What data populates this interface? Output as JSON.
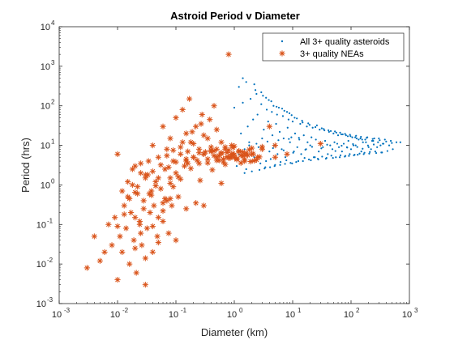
{
  "chart_data": {
    "type": "scatter",
    "title": "Astroid Period v Diameter",
    "xlabel": "Diameter (km)",
    "ylabel": "Period (hrs)",
    "xscale": "log",
    "yscale": "log",
    "xlim": [
      0.001,
      1000
    ],
    "ylim": [
      0.001,
      10000
    ],
    "x_ticks": [
      {
        "value": 0.001,
        "base": "10",
        "exp": "-3"
      },
      {
        "value": 0.01,
        "base": "10",
        "exp": "-2"
      },
      {
        "value": 0.1,
        "base": "10",
        "exp": "-1"
      },
      {
        "value": 1,
        "base": "10",
        "exp": "0"
      },
      {
        "value": 10,
        "base": "10",
        "exp": "1"
      },
      {
        "value": 100,
        "base": "10",
        "exp": "2"
      },
      {
        "value": 1000,
        "base": "10",
        "exp": "3"
      }
    ],
    "y_ticks": [
      {
        "value": 0.001,
        "base": "10",
        "exp": "-3"
      },
      {
        "value": 0.01,
        "base": "10",
        "exp": "-2"
      },
      {
        "value": 0.1,
        "base": "10",
        "exp": "-1"
      },
      {
        "value": 1,
        "base": "10",
        "exp": "0"
      },
      {
        "value": 10,
        "base": "10",
        "exp": "1"
      },
      {
        "value": 100,
        "base": "10",
        "exp": "2"
      },
      {
        "value": 1000,
        "base": "10",
        "exp": "3"
      },
      {
        "value": 10000,
        "base": "10",
        "exp": "4"
      }
    ],
    "grid": false,
    "legend_position": "top-right",
    "series": [
      {
        "name": "All 3+ quality asteroids",
        "marker": "dot",
        "color": "#0072BD",
        "x": [
          1.2,
          1.5,
          1.8,
          2.2,
          2.6,
          3.0,
          3.5,
          4.0,
          4.8,
          5.5,
          6.5,
          7.5,
          9.0,
          10.5,
          12.0,
          14.0,
          17.0,
          20.0,
          24.0,
          28.0,
          33.0,
          40.0,
          48.0,
          58.0,
          70.0,
          85.0,
          100.0,
          120.0,
          150.0,
          180.0,
          220.0,
          280.0,
          350.0,
          450.0,
          600.0,
          1.3,
          1.7,
          2.1,
          2.5,
          3.2,
          3.8,
          4.5,
          5.2,
          6.0,
          7.0,
          8.2,
          9.5,
          11.0,
          13.0,
          15.5,
          18.0,
          21.0,
          25.0,
          30.0,
          36.0,
          44.0,
          52.0,
          62.0,
          75.0,
          90.0,
          110.0,
          135.0,
          160.0,
          200.0,
          250.0,
          320.0,
          1.1,
          1.6,
          2.0,
          2.8,
          3.4,
          4.2,
          5.0,
          6.2,
          7.8,
          9.8,
          12.5,
          16.0,
          19.0,
          23.0,
          27.0,
          32.0,
          38.0,
          46.0,
          55.0,
          66.0,
          80.0,
          95.0,
          115.0,
          140.0,
          170.0,
          210.0,
          260.0,
          330.0,
          420.0,
          520.0,
          1.0,
          1.4,
          1.9,
          2.4,
          2.9,
          3.6,
          4.4,
          5.4,
          6.8,
          8.5,
          10.0,
          13.5,
          17.5,
          22.0,
          29.0,
          35.0,
          42.0,
          50.0,
          60.0,
          72.0,
          88.0,
          105.0,
          125.0,
          155.0,
          190.0,
          240.0,
          300.0,
          380.0,
          480.0,
          700.0,
          1.2,
          1.6,
          2.3,
          3.1,
          3.9,
          4.7,
          5.8,
          7.2,
          8.8,
          10.8,
          14.5,
          18.5,
          26.0,
          34.0,
          45.0,
          56.0,
          68.0,
          82.0,
          98.0,
          118.0,
          145.0,
          175.0,
          230.0,
          290.0,
          360.0,
          1.5,
          2.0,
          2.7,
          3.3,
          4.1,
          4.9,
          6.1,
          7.4,
          9.2,
          11.5,
          15.0,
          20.5,
          27.5,
          37.0,
          49.0,
          64.0,
          78.0,
          92.0,
          112.0,
          130.0,
          165.0,
          205.0,
          270.0,
          340.0,
          1.8,
          2.4,
          3.0,
          3.7,
          4.6,
          5.7,
          7.0,
          8.6,
          10.2,
          12.8,
          16.5,
          21.5,
          31.0,
          39.0,
          54.0,
          69.0,
          86.0,
          108.0,
          128.0,
          158.0,
          195.0,
          245.0,
          1.4,
          2.2,
          2.9,
          3.5,
          4.3,
          5.3,
          6.6,
          8.0,
          9.6,
          11.8,
          14.8,
          19.5,
          24.5,
          31.5,
          41.0,
          53.0,
          65.0,
          79.0,
          96.0,
          122.0,
          148.0,
          185.0,
          235.0,
          310.0,
          400.0,
          500.0
        ],
        "y": [
          6.0,
          8.0,
          12.0,
          5.0,
          9.0,
          15.0,
          4.0,
          7.0,
          10.0,
          6.0,
          8.0,
          5.0,
          12.0,
          7.0,
          9.0,
          6.0,
          8.0,
          10.0,
          5.0,
          7.0,
          9.0,
          6.0,
          8.0,
          11.0,
          7.0,
          9.0,
          8.0,
          10.0,
          7.0,
          12.0,
          8.0,
          9.0,
          11.0,
          10.0,
          12.0,
          20.0,
          30.0,
          45.0,
          60.0,
          25.0,
          40.0,
          18.0,
          35.0,
          22.0,
          15.0,
          28.0,
          16.0,
          20.0,
          14.0,
          18.0,
          12.0,
          16.0,
          14.0,
          11.0,
          13.0,
          10.0,
          12.0,
          9.0,
          11.0,
          13.0,
          10.0,
          14.0,
          12.0,
          9.0,
          15.0,
          10.0,
          3.0,
          2.5,
          4.0,
          3.5,
          2.8,
          4.5,
          3.2,
          3.8,
          4.2,
          3.5,
          4.0,
          4.8,
          4.4,
          5.0,
          4.6,
          5.2,
          4.8,
          5.5,
          5.0,
          5.6,
          5.4,
          6.0,
          5.8,
          6.2,
          6.5,
          6.8,
          7.0,
          6.6,
          7.2,
          8.0,
          90.0,
          120.0,
          150.0,
          200.0,
          110.0,
          80.0,
          70.0,
          60.0,
          55.0,
          45.0,
          40.0,
          35.0,
          30.0,
          28.0,
          25.0,
          24.0,
          22.0,
          20.0,
          18.0,
          19.0,
          17.0,
          16.0,
          15.0,
          14.0,
          16.0,
          13.0,
          15.0,
          14.0,
          13.0,
          12.0,
          300.0,
          400.0,
          250.0,
          180.0,
          140.0,
          100.0,
          90.0,
          75.0,
          65.0,
          50.0,
          42.0,
          36.0,
          32.0,
          26.0,
          23.0,
          21.0,
          19.0,
          18.0,
          17.0,
          16.0,
          15.0,
          14.0,
          13.0,
          12.0,
          11.0,
          2.0,
          2.2,
          2.4,
          2.6,
          2.8,
          3.0,
          3.2,
          3.4,
          3.6,
          3.8,
          4.0,
          4.2,
          4.4,
          4.6,
          4.8,
          5.0,
          5.2,
          5.4,
          5.6,
          5.8,
          6.0,
          6.2,
          6.4,
          6.6,
          10.0,
          11.0,
          9.5,
          12.5,
          8.5,
          13.5,
          7.5,
          14.5,
          6.5,
          15.5,
          7.8,
          9.2,
          8.4,
          10.4,
          7.2,
          9.8,
          8.8,
          10.8,
          9.1,
          8.2,
          9.9,
          10.5,
          500.0,
          350.0,
          220.0,
          160.0,
          130.0,
          95.0,
          85.0,
          70.0,
          58.0,
          48.0,
          38.0,
          33.0,
          29.0,
          27.0,
          24.0,
          22.5,
          21.0,
          19.5,
          18.5,
          17.5,
          16.5,
          15.5,
          14.5,
          13.5,
          12.5,
          11.5
        ]
      },
      {
        "name": "3+ quality NEAs",
        "marker": "asterisk",
        "color": "#D95319",
        "x": [
          0.003,
          0.004,
          0.005,
          0.006,
          0.007,
          0.008,
          0.009,
          0.01,
          0.01,
          0.011,
          0.012,
          0.013,
          0.014,
          0.015,
          0.016,
          0.017,
          0.018,
          0.019,
          0.02,
          0.02,
          0.021,
          0.022,
          0.024,
          0.025,
          0.026,
          0.028,
          0.03,
          0.03,
          0.032,
          0.034,
          0.036,
          0.038,
          0.04,
          0.04,
          0.042,
          0.045,
          0.048,
          0.05,
          0.05,
          0.055,
          0.06,
          0.06,
          0.065,
          0.07,
          0.07,
          0.075,
          0.08,
          0.08,
          0.085,
          0.09,
          0.09,
          0.1,
          0.1,
          0.11,
          0.12,
          0.13,
          0.14,
          0.15,
          0.16,
          0.17,
          0.18,
          0.2,
          0.22,
          0.25,
          0.28,
          0.3,
          0.35,
          0.4,
          0.45,
          0.5,
          0.6,
          0.7,
          0.8,
          0.9,
          1.0,
          1.2,
          1.5,
          2.0,
          2.5,
          3.0,
          4.0,
          5.0,
          0.012,
          0.015,
          0.018,
          0.022,
          0.025,
          0.03,
          0.035,
          0.04,
          0.05,
          0.06,
          0.07,
          0.08,
          0.1,
          0.12,
          0.15,
          0.2,
          0.25,
          0.3,
          0.4,
          0.5,
          0.6,
          0.8,
          1.0,
          1.5,
          2.0,
          0.01,
          0.013,
          0.016,
          0.02,
          0.024,
          0.028,
          0.033,
          0.038,
          0.045,
          0.055,
          0.065,
          0.075,
          0.09,
          0.11,
          0.13,
          0.16,
          0.19,
          0.23,
          0.27,
          0.32,
          0.38,
          0.45,
          0.55,
          0.65,
          0.75,
          0.85,
          0.95,
          1.1,
          1.3,
          1.6,
          0.02,
          0.025,
          0.03,
          0.04,
          0.05,
          0.06,
          0.08,
          0.1,
          0.12,
          0.15,
          0.18,
          0.22,
          0.26,
          0.3,
          0.35,
          0.42,
          0.5,
          0.6,
          0.7,
          0.9,
          1.1,
          1.4,
          1.8,
          2.2,
          3.0,
          5.0,
          8.0,
          30.0,
          0.15,
          0.2,
          0.25,
          0.3,
          0.35,
          0.4,
          0.45,
          0.5,
          0.55,
          0.6,
          0.65,
          0.7,
          0.75,
          0.8,
          0.85,
          0.9,
          0.95,
          1.0,
          1.1,
          1.2,
          1.3,
          1.4,
          1.5,
          1.7,
          1.9,
          2.1,
          2.4,
          2.7
        ],
        "y": [
          0.008,
          0.05,
          0.012,
          0.02,
          0.1,
          0.03,
          0.15,
          0.004,
          6.0,
          0.05,
          0.02,
          0.3,
          0.08,
          0.5,
          0.01,
          0.2,
          1.0,
          0.04,
          3.0,
          0.15,
          0.006,
          0.6,
          0.1,
          2.0,
          0.03,
          0.4,
          0.003,
          1.5,
          0.08,
          4.0,
          0.2,
          0.7,
          0.02,
          10.0,
          0.3,
          1.2,
          0.05,
          5.0,
          0.15,
          0.8,
          30.0,
          0.12,
          2.5,
          0.4,
          8.0,
          0.06,
          1.5,
          15.0,
          0.3,
          4.0,
          0.9,
          50.0,
          2.0,
          0.5,
          6.0,
          80.0,
          3.0,
          20.0,
          7.0,
          150.0,
          12.0,
          5.0,
          30.0,
          8.0,
          60.0,
          6.0,
          15.0,
          9.0,
          100.0,
          5.0,
          12.0,
          8.0,
          2000.0,
          6.0,
          5.0,
          7.0,
          4.0,
          6.0,
          5.0,
          8.0,
          30.0,
          5.0,
          0.7,
          1.2,
          2.5,
          0.9,
          3.5,
          1.8,
          0.6,
          2.2,
          1.5,
          0.35,
          5.5,
          1.1,
          3.8,
          9.0,
          4.5,
          11.0,
          6.5,
          18.0,
          7.5,
          25.0,
          6.2,
          4.8,
          9.5,
          5.8,
          8.5,
          0.09,
          0.18,
          0.45,
          0.65,
          0.12,
          0.25,
          1.8,
          0.55,
          0.95,
          3.2,
          0.45,
          2.8,
          7.5,
          1.6,
          12.0,
          3.5,
          22.0,
          4.2,
          35.0,
          6.8,
          45.0,
          7.2,
          5.5,
          4.5,
          6.6,
          5.2,
          8.8,
          4.4,
          5.6,
          6.4,
          0.025,
          0.06,
          0.014,
          0.09,
          0.035,
          0.22,
          0.45,
          0.04,
          1.4,
          0.25,
          2.6,
          0.35,
          1.3,
          0.3,
          3.6,
          2.4,
          4.2,
          1.1,
          3.3,
          5.4,
          4.6,
          5.3,
          7.8,
          4.1,
          9.2,
          10.0,
          6.0,
          11.0,
          4.0,
          5.0,
          3.5,
          6.0,
          4.5,
          7.0,
          5.5,
          8.0,
          4.2,
          6.5,
          3.8,
          9.0,
          5.2,
          7.5,
          4.8,
          10.0,
          6.2,
          5.8,
          4.6,
          7.2,
          3.6,
          6.8,
          4.4,
          5.6,
          3.9,
          6.1,
          4.3,
          5.1
        ]
      }
    ]
  }
}
